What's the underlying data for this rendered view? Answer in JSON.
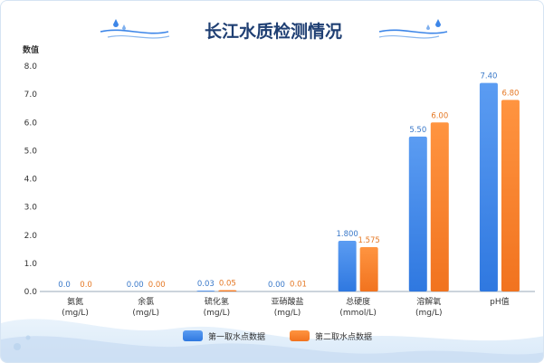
{
  "chart_data": {
    "type": "bar",
    "title": "长江水质检测情况",
    "ylabel": "数值",
    "xlabel": "",
    "ylim": [
      0,
      8
    ],
    "yticks": [
      "0.0",
      "1.0",
      "2.0",
      "3.0",
      "4.0",
      "5.0",
      "6.0",
      "7.0",
      "8.0"
    ],
    "grid": false,
    "legend_position": "bottom-center",
    "categories": [
      [
        "氨氮",
        "(mg/L)"
      ],
      [
        "余氯",
        "(mg/L)"
      ],
      [
        "硫化氢",
        "(mg/L)"
      ],
      [
        "亚硝酸盐",
        "(mg/L)"
      ],
      [
        "总硬度",
        "(mmol/L)"
      ],
      [
        "溶解氧",
        "(mg/L)"
      ],
      [
        "pH值",
        ""
      ]
    ],
    "series": [
      {
        "name": "第一取水点数据",
        "color": "#3d86e8",
        "label_color": "#3a79c9",
        "values": [
          0.0,
          0.0,
          0.03,
          0.0,
          1.8,
          5.5,
          7.4
        ],
        "labels": [
          "0.0",
          "0.00",
          "0.03",
          "0.00",
          "1.800",
          "5.50",
          "7.40"
        ]
      },
      {
        "name": "第二取水点数据",
        "color": "#f57f2f",
        "label_color": "#e57824",
        "values": [
          0.0,
          0.0,
          0.05,
          0.01,
          1.575,
          6.0,
          6.8
        ],
        "labels": [
          "0.0",
          "0.00",
          "0.05",
          "0.01",
          "1.575",
          "6.00",
          "6.80"
        ]
      }
    ]
  }
}
